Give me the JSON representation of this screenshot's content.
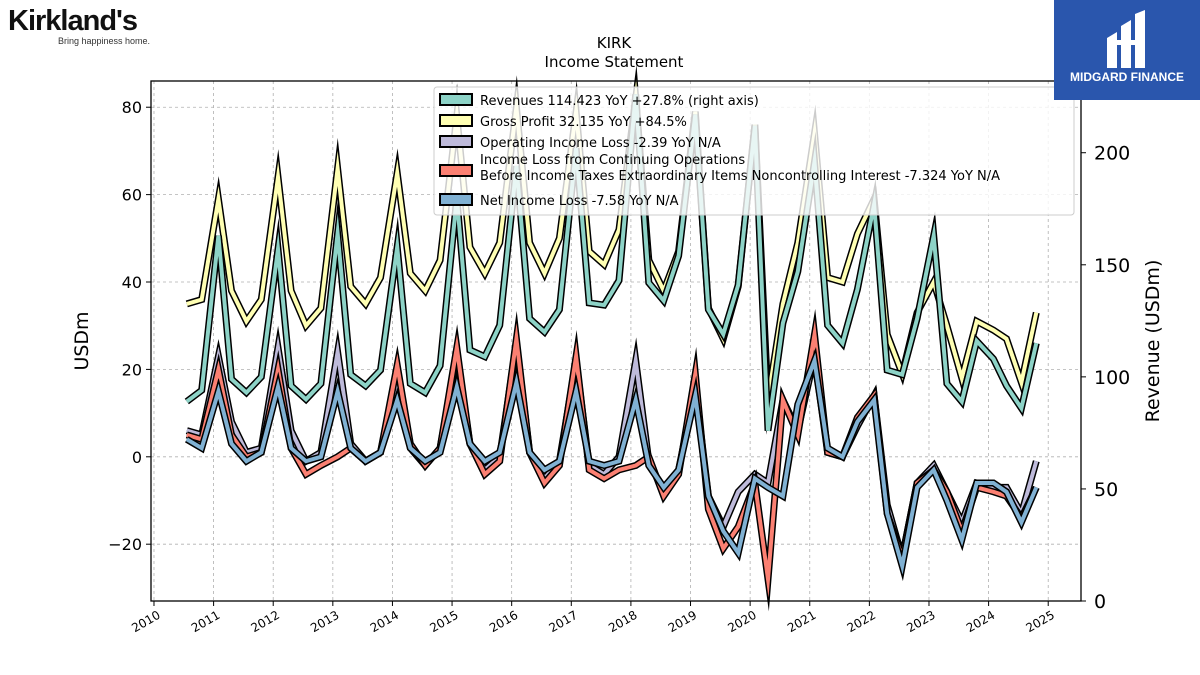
{
  "brand_left": {
    "name": "Kirkland's",
    "tagline": "Bring happiness home."
  },
  "brand_right": {
    "name": "MIDGARD FINANCE"
  },
  "chart_data": {
    "type": "line",
    "title": "KIRK",
    "subtitle": "Income Statement",
    "ylabel": "USDm",
    "y2label": "Revenue (USDm)",
    "ylim": [
      -33,
      86
    ],
    "y2lim": [
      0,
      232
    ],
    "xlim": [
      2009.95,
      2025.55
    ],
    "yticks": [
      -20,
      0,
      20,
      40,
      60,
      80
    ],
    "y2ticks": [
      0,
      50,
      100,
      150,
      200
    ],
    "xticks": [
      "2010",
      "2011",
      "2012",
      "2013",
      "2014",
      "2015",
      "2016",
      "2017",
      "2018",
      "2019",
      "2020",
      "2021",
      "2022",
      "2023",
      "2024",
      "2025"
    ],
    "grid": true,
    "legend_position": "top-center",
    "x": [
      2010.55,
      2010.8,
      2011.08,
      2011.3,
      2011.55,
      2011.8,
      2012.08,
      2012.3,
      2012.55,
      2012.8,
      2013.08,
      2013.3,
      2013.55,
      2013.8,
      2014.08,
      2014.3,
      2014.55,
      2014.8,
      2015.08,
      2015.3,
      2015.55,
      2015.8,
      2016.08,
      2016.3,
      2016.55,
      2016.8,
      2017.08,
      2017.3,
      2017.55,
      2017.8,
      2018.08,
      2018.3,
      2018.55,
      2018.8,
      2019.08,
      2019.3,
      2019.55,
      2019.8,
      2020.08,
      2020.3,
      2020.55,
      2020.8,
      2021.08,
      2021.3,
      2021.55,
      2021.8,
      2022.08,
      2022.3,
      2022.55,
      2022.8,
      2023.08,
      2023.3,
      2023.55,
      2023.8,
      2024.08,
      2024.3,
      2024.55,
      2024.8
    ],
    "series": [
      {
        "name": "Revenues  114.423 YoY +27.8% (right axis)",
        "axis": "right",
        "color": "#8dd3c7",
        "values": [
          89,
          94,
          163,
          99,
          93,
          100,
          157,
          96,
          90,
          97,
          164,
          101,
          96,
          103,
          158,
          97,
          93,
          105,
          180,
          112,
          109,
          123,
          194,
          126,
          120,
          130,
          202,
          133,
          132,
          143,
          226,
          142,
          134,
          154,
          217,
          130,
          119,
          141,
          212,
          76,
          124,
          147,
          196,
          123,
          115,
          139,
          177,
          103,
          101,
          126,
          163,
          97,
          89,
          116,
          108,
          96,
          86,
          115
        ]
      },
      {
        "name": "Gross Profit  32.135 YoY +84.5%",
        "axis": "left",
        "color": "#ffffb3",
        "values": [
          35,
          36,
          59,
          38,
          31,
          36,
          64,
          38,
          30,
          34,
          66,
          39,
          35,
          41,
          65,
          42,
          38,
          45,
          78,
          48,
          42,
          49,
          80,
          49,
          42,
          50,
          79,
          47,
          44,
          52,
          82,
          45,
          38,
          47,
          79,
          34,
          27,
          39,
          76,
          13,
          35,
          49,
          74,
          41,
          40,
          51,
          59,
          28,
          19,
          33,
          40,
          30,
          18,
          31,
          29,
          27,
          17,
          33
        ]
      },
      {
        "name": "Operating Income Loss  -2.39 YoY N/A",
        "axis": "left",
        "color": "#bebada",
        "values": [
          6,
          5,
          23,
          8,
          1,
          2,
          25,
          6,
          -1,
          1,
          24,
          3,
          -1,
          1,
          18,
          2,
          -2,
          2,
          23,
          3,
          -3,
          0,
          26,
          1,
          -5,
          -1,
          22,
          -2,
          -4,
          0,
          22,
          -1,
          -8,
          -3,
          16,
          -9,
          -16,
          -8,
          -4,
          -6,
          13,
          6,
          23,
          1,
          0,
          7,
          14,
          -11,
          -23,
          -6,
          -2,
          -8,
          -15,
          -6,
          -7,
          -7,
          -13,
          -1
        ]
      },
      {
        "name": "Income Loss from Continuing Operations\nBefore Income Taxes Extraordinary Items Noncontrolling Interest  -7.324 YoY N/A",
        "axis": "left",
        "color": "#fb8072",
        "values": [
          5,
          4,
          20,
          5,
          0,
          1,
          20,
          2,
          -4,
          -2,
          0,
          2,
          -1,
          1,
          21,
          3,
          -2,
          2,
          25,
          3,
          -4,
          -1,
          27,
          1,
          -6,
          -2,
          23,
          -3,
          -5,
          -3,
          -2,
          0,
          -9,
          -4,
          19,
          -12,
          -21,
          -16,
          -6,
          -28,
          13,
          5,
          28,
          1,
          0,
          9,
          14,
          -13,
          -23,
          -6,
          -3,
          -8,
          -17,
          -7,
          -8,
          -9,
          -14,
          -7
        ]
      },
      {
        "name": "Net Income Loss  -7.58 YoY N/A",
        "axis": "left",
        "color": "#80b1d3",
        "values": [
          4,
          2,
          15,
          3,
          -1,
          1,
          16,
          2,
          -1,
          0,
          15,
          2,
          -1,
          1,
          13,
          2,
          -1,
          1,
          16,
          3,
          -1,
          1,
          17,
          1,
          -3,
          -1,
          15,
          -1,
          -2,
          -1,
          13,
          -2,
          -7,
          -3,
          14,
          -9,
          -17,
          -22,
          -5,
          -7,
          -9,
          12,
          22,
          2,
          0,
          8,
          13,
          -13,
          -25,
          -7,
          -3,
          -10,
          -19,
          -6,
          -6,
          -8,
          -15,
          -7
        ]
      }
    ]
  }
}
